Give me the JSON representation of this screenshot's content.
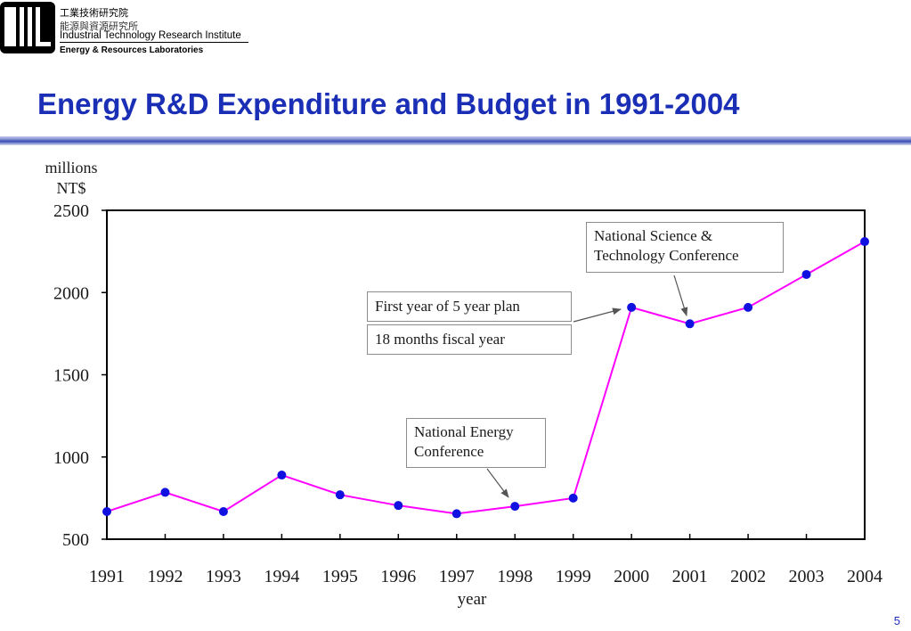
{
  "header": {
    "org_zh": "工業技術研究院",
    "lab_zh": "能源與資源研究所",
    "org_en": "Industrial Technology Research Institute",
    "lab_en": "Energy & Resources Laboratories",
    "logo_icon": "itri-logo-icon"
  },
  "title": "Energy R&D Expenditure and Budget in 1991-2004",
  "page_number": "5",
  "colors": {
    "title": "#1a2fb5",
    "line": "#ff00ff",
    "marker": "#1010e0"
  },
  "chart_data": {
    "type": "line",
    "ylabel_line1": "millions",
    "ylabel_line2": "NT$",
    "xlabel": "year",
    "ylim": [
      500,
      2500
    ],
    "yticks": [
      500,
      1000,
      1500,
      2000,
      2500
    ],
    "x": [
      1991,
      1992,
      1993,
      1994,
      1995,
      1996,
      1997,
      1998,
      1999,
      2000,
      2001,
      2002,
      2003,
      2004
    ],
    "values": [
      668,
      785,
      668,
      890,
      770,
      705,
      655,
      700,
      750,
      1910,
      1810,
      1910,
      2110,
      2310
    ],
    "grid": false,
    "annotations": [
      {
        "text": "National Science & Technology Conference",
        "lines": [
          "National Science &",
          "Technology Conference"
        ],
        "points_to_year": 2001
      },
      {
        "text": "First year of 5 year plan",
        "points_to_year": 2000
      },
      {
        "text": "18 months fiscal year"
      },
      {
        "text": "National Energy Conference",
        "lines": [
          "National Energy",
          "Conference"
        ],
        "points_to_year": 1998
      }
    ]
  }
}
